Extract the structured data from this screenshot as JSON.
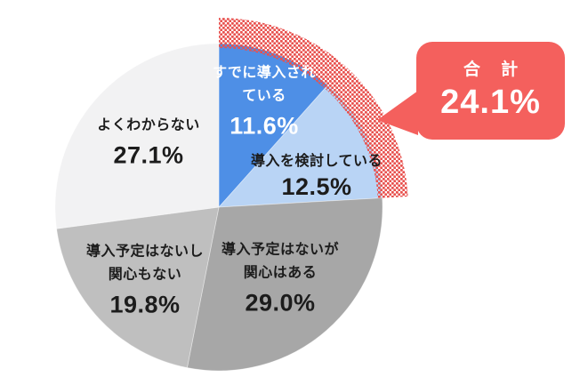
{
  "page": {
    "background_color": "#ffffff"
  },
  "chart_data": {
    "type": "pie",
    "title": "",
    "unit": "%",
    "start_angle_deg": 0,
    "direction": "clockwise",
    "segments": [
      {
        "label": "すでに導入されている",
        "label_lines": [
          "すでに導入され",
          "ている"
        ],
        "value": 11.6,
        "display_value": "11.6%",
        "color": "#4e8fe6",
        "text_color": "#ffffff"
      },
      {
        "label": "導入を検討している",
        "label_lines": [
          "導入を検討している"
        ],
        "value": 12.5,
        "display_value": "12.5%",
        "color": "#b9d4f5",
        "text_color": "#1c1c1c"
      },
      {
        "label": "導入予定はないが関心はある",
        "label_lines": [
          "導入予定はないが",
          "関心はある"
        ],
        "value": 29.0,
        "display_value": "29.0%",
        "color": "#a7a7a7",
        "text_color": "#1c1c1c"
      },
      {
        "label": "導入予定はないし関心もない",
        "label_lines": [
          "導入予定はないし",
          "関心もない"
        ],
        "value": 19.8,
        "display_value": "19.8%",
        "color": "#bfbfbf",
        "text_color": "#1c1c1c"
      },
      {
        "label": "よくわからない",
        "label_lines": [
          "よくわからない"
        ],
        "value": 27.1,
        "display_value": "27.1%",
        "color": "#f2f2f3",
        "text_color": "#1c1c1c"
      }
    ],
    "callout": {
      "label": "合 計",
      "value": 24.1,
      "display_value": "24.1%",
      "covers_segments": [
        "すでに導入されている",
        "導入を検討している"
      ],
      "color": "#f4605d",
      "text_color": "#ffffff"
    },
    "highlight_arc": {
      "start_percent": 0,
      "end_percent": 24.1,
      "pattern": "red-dots",
      "color": "#e8514e"
    }
  }
}
